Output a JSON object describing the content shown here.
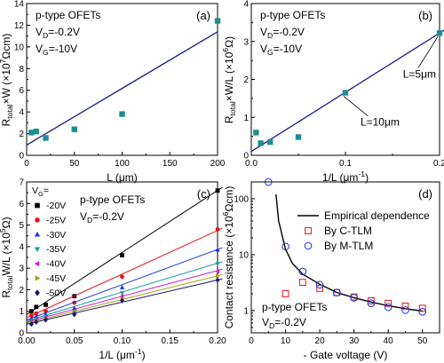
{
  "chart_data": [
    {
      "panel": "(a)",
      "type": "scatter",
      "annotations": [
        [
          {
            "t": "p-type OFETs"
          }
        ],
        [
          {
            "t": "V"
          },
          {
            "t": "D",
            "s": "sub"
          },
          {
            "t": "=-0.2V"
          }
        ],
        [
          {
            "t": "V"
          },
          {
            "t": "G",
            "s": "sub"
          },
          {
            "t": "=-10V"
          }
        ]
      ],
      "xlabel": [
        {
          "t": "L (μm)"
        }
      ],
      "ylabel": [
        {
          "t": "R"
        },
        {
          "t": "total",
          "s": "sub"
        },
        {
          "t": "×W (×10"
        },
        {
          "t": "7",
          "s": "sup"
        },
        {
          "t": "Ωcm)"
        }
      ],
      "xlim": [
        0,
        200
      ],
      "ylim": [
        0,
        14
      ],
      "xticks": [
        "0",
        "50",
        "100",
        "150",
        "200"
      ],
      "yticks": [
        "0",
        "2",
        "4",
        "6",
        "8",
        "10",
        "12",
        "14"
      ],
      "points": [
        [
          5,
          2.1
        ],
        [
          10,
          2.2
        ],
        [
          20,
          1.6
        ],
        [
          50,
          2.4
        ],
        [
          100,
          3.8
        ],
        [
          200,
          12.4
        ]
      ],
      "fit": [
        [
          0,
          0.95
        ],
        [
          200,
          11.4
        ]
      ],
      "marker_color": "#1c8f8f",
      "line_color": "#1a1a8c"
    },
    {
      "panel": "(b)",
      "type": "scatter",
      "annotations": [
        [
          {
            "t": "p-type OFETs"
          }
        ],
        [
          {
            "t": "V"
          },
          {
            "t": "D",
            "s": "sub"
          },
          {
            "t": "=-0.2V"
          }
        ],
        [
          {
            "t": "V"
          },
          {
            "t": "G",
            "s": "sub"
          },
          {
            "t": "=-10V"
          }
        ]
      ],
      "callouts": [
        "L=5μm",
        "L=10μm"
      ],
      "xlabel": [
        {
          "t": "1/L  (μm"
        },
        {
          "t": "-1",
          "s": "sup"
        },
        {
          "t": ")"
        }
      ],
      "ylabel": [
        {
          "t": "R"
        },
        {
          "t": "total",
          "s": "sub"
        },
        {
          "t": "×W/L (×10"
        },
        {
          "t": "6",
          "s": "sup"
        },
        {
          "t": "Ω)"
        }
      ],
      "xlim": [
        0,
        0.2
      ],
      "ylim": [
        0,
        4
      ],
      "xticks": [
        "0.0",
        "0.1",
        "0.2"
      ],
      "yticks": [
        "0",
        "1",
        "2",
        "3",
        "4"
      ],
      "points": [
        [
          0.005,
          0.6
        ],
        [
          0.01,
          0.32
        ],
        [
          0.02,
          0.35
        ],
        [
          0.05,
          0.48
        ],
        [
          0.1,
          1.65
        ],
        [
          0.2,
          3.22
        ]
      ],
      "fit": [
        [
          0,
          0.1
        ],
        [
          0.205,
          3.3
        ]
      ],
      "marker_color": "#1c8f8f",
      "line_color": "#1a1a8c"
    },
    {
      "panel": "(c)",
      "type": "line",
      "legend_title": "V",
      "legend_title_sub": "G",
      "legend_title_tail": "=",
      "annotations": [
        [
          {
            "t": "p-type OFETs"
          }
        ],
        [
          {
            "t": "V"
          },
          {
            "t": "D",
            "s": "sub"
          },
          {
            "t": "=-0.2V"
          }
        ]
      ],
      "xlabel": [
        {
          "t": "1/L  (μm"
        },
        {
          "t": "-1",
          "s": "sup"
        },
        {
          "t": ")"
        }
      ],
      "ylabel": [
        {
          "t": "R"
        },
        {
          "t": "total",
          "s": "sub"
        },
        {
          "t": "W/L (×10"
        },
        {
          "t": "5",
          "s": "sup"
        },
        {
          "t": "Ω)"
        }
      ],
      "xlim": [
        0,
        0.2
      ],
      "ylim": [
        0,
        7
      ],
      "xticks": [
        "0.00",
        "0.05",
        "0.10",
        "0.15",
        "0.20"
      ],
      "yticks": [
        "0",
        "1",
        "2",
        "3",
        "4",
        "5",
        "6",
        "7"
      ],
      "x": [
        0.005,
        0.01,
        0.02,
        0.05,
        0.1,
        0.2
      ],
      "series": [
        {
          "name": "-20V",
          "marker": "square",
          "color": "#000000",
          "values": [
            1.0,
            1.2,
            1.3,
            1.7,
            3.6,
            6.6
          ]
        },
        {
          "name": "-25V",
          "marker": "circle",
          "color": "#e8101a",
          "values": [
            0.8,
            0.9,
            1.0,
            1.4,
            2.6,
            4.8
          ]
        },
        {
          "name": "-30V",
          "marker": "triangle-up",
          "color": "#1530e0",
          "values": [
            0.65,
            0.75,
            0.85,
            1.15,
            2.1,
            3.85
          ]
        },
        {
          "name": "-35V",
          "marker": "triangle-down",
          "color": "#14a0a0",
          "values": [
            0.55,
            0.65,
            0.75,
            1.0,
            1.85,
            3.2
          ]
        },
        {
          "name": "-40V",
          "marker": "triangle-left",
          "color": "#d01ad0",
          "values": [
            0.5,
            0.6,
            0.7,
            0.95,
            1.7,
            2.85
          ]
        },
        {
          "name": "-45V",
          "marker": "triangle-right",
          "color": "#a0a000",
          "values": [
            0.45,
            0.55,
            0.65,
            0.9,
            1.6,
            2.65
          ]
        },
        {
          "name": "-50V",
          "marker": "diamond",
          "color": "#15156e",
          "values": [
            0.4,
            0.5,
            0.6,
            0.85,
            1.5,
            2.45
          ]
        }
      ],
      "fits": [
        [
          [
            0,
            0.85
          ],
          [
            0.205,
            6.75
          ]
        ],
        [
          [
            0,
            0.7
          ],
          [
            0.205,
            4.85
          ]
        ],
        [
          [
            0,
            0.6
          ],
          [
            0.205,
            3.95
          ]
        ],
        [
          [
            0,
            0.55
          ],
          [
            0.205,
            3.3
          ]
        ],
        [
          [
            0,
            0.5
          ],
          [
            0.205,
            2.95
          ]
        ],
        [
          [
            0,
            0.45
          ],
          [
            0.205,
            2.7
          ]
        ],
        [
          [
            0,
            0.4
          ],
          [
            0.205,
            2.5
          ]
        ]
      ]
    },
    {
      "panel": "(d)",
      "type": "scatter",
      "yscale": "log",
      "annotations": [
        [
          {
            "t": "p-type OFETs"
          }
        ],
        [
          {
            "t": "V"
          },
          {
            "t": "D",
            "s": "sub"
          },
          {
            "t": "=-0.2V"
          }
        ]
      ],
      "xlabel": [
        {
          "t": "- Gate voltage  (V)"
        }
      ],
      "ylabel": [
        {
          "t": "Contact resistance (×10"
        },
        {
          "t": "6",
          "s": "sup"
        },
        {
          "t": "Ωcm)"
        }
      ],
      "xlim": [
        0,
        55
      ],
      "ylim": [
        0.4,
        200
      ],
      "xticks": [
        "0",
        "10",
        "20",
        "30",
        "40",
        "50"
      ],
      "yticks": [
        "1",
        "10",
        "100"
      ],
      "legend": [
        "Empirical dependence",
        "By C-TLM",
        "By M-TLM"
      ],
      "empirical": [
        [
          7.2,
          120
        ],
        [
          8,
          40
        ],
        [
          10,
          12.5
        ],
        [
          12,
          7.0
        ],
        [
          15,
          4.5
        ],
        [
          20,
          2.95
        ],
        [
          25,
          2.1
        ],
        [
          30,
          1.7
        ],
        [
          35,
          1.42
        ],
        [
          40,
          1.22
        ],
        [
          45,
          1.08
        ],
        [
          50,
          0.98
        ]
      ],
      "c_tlm": [
        [
          10,
          2.0
        ],
        [
          15,
          3.2
        ],
        [
          20,
          2.5
        ],
        [
          25,
          2.1
        ],
        [
          30,
          1.75
        ],
        [
          35,
          1.5
        ],
        [
          40,
          1.35
        ],
        [
          45,
          1.2
        ],
        [
          50,
          1.1
        ]
      ],
      "m_tlm": [
        [
          5,
          200
        ],
        [
          10,
          14
        ],
        [
          15,
          5.0
        ],
        [
          20,
          2.9
        ],
        [
          25,
          2.1
        ],
        [
          30,
          1.7
        ],
        [
          35,
          1.35
        ],
        [
          40,
          1.15
        ],
        [
          45,
          1.02
        ],
        [
          50,
          0.95
        ]
      ],
      "c_color": "#e8101a",
      "m_color": "#1530e0"
    }
  ]
}
